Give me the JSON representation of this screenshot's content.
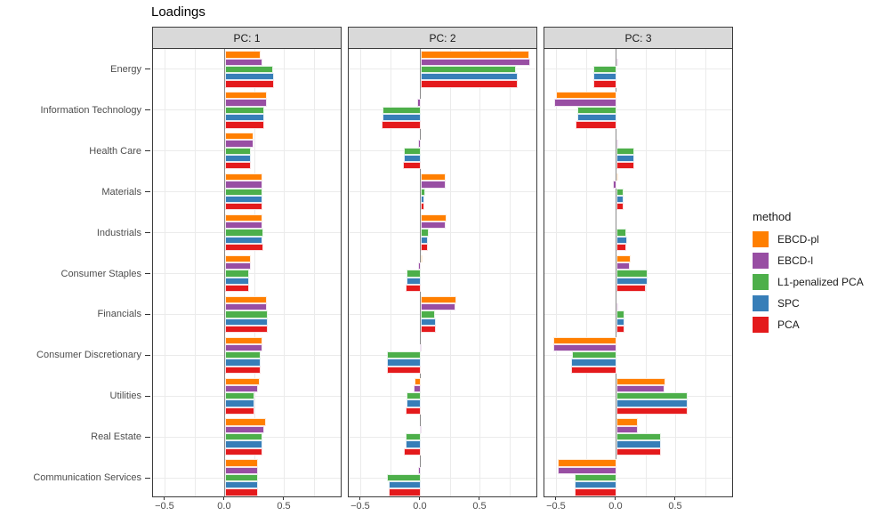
{
  "title": "Loadings",
  "legend": {
    "title": "method",
    "items": [
      {
        "label": "EBCD-pl",
        "color": "#FF7F00"
      },
      {
        "label": "EBCD-l",
        "color": "#984EA3"
      },
      {
        "label": "L1-penalized PCA",
        "color": "#4DAF4A"
      },
      {
        "label": "SPC",
        "color": "#377EB8"
      },
      {
        "label": "PCA",
        "color": "#E41A1C"
      }
    ]
  },
  "theme": {
    "strip_bg": "#D9D9D9",
    "panel_border": "#3C3C3C",
    "gridline": "#EBEBEB",
    "zero_line": "#8A8A8A",
    "axis_text": "#4D4D4D"
  },
  "chart_data": {
    "type": "bar",
    "orientation": "horizontal",
    "title": "Loadings",
    "xlabel": "",
    "ylabel": "",
    "grid": true,
    "legend_position": "right",
    "xlim": [
      -0.604,
      0.985
    ],
    "x_ticks": [
      -0.5,
      0.0,
      0.5
    ],
    "x_tick_labels": [
      "−0.5",
      "0.0",
      "0.5"
    ],
    "x_gridlines": [
      -0.5,
      -0.25,
      0.0,
      0.25,
      0.5,
      0.75
    ],
    "categories": [
      "Energy",
      "Information Technology",
      "Health Care",
      "Materials",
      "Industrials",
      "Consumer Staples",
      "Financials",
      "Consumer Discretionary",
      "Utilities",
      "Real Estate",
      "Communication Services"
    ],
    "methods": [
      "EBCD-pl",
      "EBCD-l",
      "L1-penalized PCA",
      "SPC",
      "PCA"
    ],
    "facets": [
      {
        "label": "PC: 1",
        "series": [
          {
            "name": "EBCD-pl",
            "values": [
              0.3,
              0.35,
              0.24,
              0.31,
              0.31,
              0.22,
              0.35,
              0.31,
              0.29,
              0.34,
              0.28
            ]
          },
          {
            "name": "EBCD-l",
            "values": [
              0.31,
              0.35,
              0.24,
              0.31,
              0.31,
              0.22,
              0.35,
              0.31,
              0.28,
              0.33,
              0.28
            ]
          },
          {
            "name": "L1-penalized PCA",
            "values": [
              0.4,
              0.33,
              0.22,
              0.31,
              0.32,
              0.2,
              0.36,
              0.3,
              0.25,
              0.31,
              0.28
            ]
          },
          {
            "name": "SPC",
            "values": [
              0.41,
              0.33,
              0.22,
              0.31,
              0.31,
              0.2,
              0.36,
              0.3,
              0.25,
              0.31,
              0.28
            ]
          },
          {
            "name": "PCA",
            "values": [
              0.41,
              0.33,
              0.22,
              0.31,
              0.32,
              0.2,
              0.36,
              0.3,
              0.25,
              0.31,
              0.28
            ]
          }
        ]
      },
      {
        "label": "PC: 2",
        "series": [
          {
            "name": "EBCD-pl",
            "values": [
              0.91,
              0.0,
              0.0,
              0.21,
              0.22,
              0.01,
              0.3,
              0.0,
              -0.05,
              0.0,
              0.0
            ]
          },
          {
            "name": "EBCD-l",
            "values": [
              0.92,
              -0.03,
              -0.02,
              0.21,
              0.21,
              -0.02,
              0.29,
              -0.01,
              -0.06,
              -0.01,
              -0.02
            ]
          },
          {
            "name": "L1-penalized PCA",
            "values": [
              0.8,
              -0.32,
              -0.14,
              0.04,
              0.07,
              -0.12,
              0.12,
              -0.28,
              -0.12,
              -0.13,
              -0.28
            ]
          },
          {
            "name": "SPC",
            "values": [
              0.81,
              -0.32,
              -0.14,
              0.03,
              0.06,
              -0.12,
              0.13,
              -0.28,
              -0.12,
              -0.13,
              -0.27
            ]
          },
          {
            "name": "PCA",
            "values": [
              0.81,
              -0.33,
              -0.15,
              0.03,
              0.06,
              -0.13,
              0.13,
              -0.28,
              -0.13,
              -0.14,
              -0.27
            ]
          }
        ]
      },
      {
        "label": "PC: 3",
        "series": [
          {
            "name": "EBCD-pl",
            "values": [
              0.0,
              -0.51,
              0.0,
              0.01,
              0.0,
              0.12,
              0.0,
              -0.53,
              0.41,
              0.18,
              -0.49
            ]
          },
          {
            "name": "EBCD-l",
            "values": [
              0.01,
              -0.52,
              0.01,
              -0.03,
              0.0,
              0.11,
              0.01,
              -0.53,
              0.4,
              0.18,
              -0.49
            ]
          },
          {
            "name": "L1-penalized PCA",
            "values": [
              -0.19,
              -0.33,
              0.15,
              0.06,
              0.08,
              0.26,
              0.07,
              -0.37,
              0.6,
              0.37,
              -0.35
            ]
          },
          {
            "name": "SPC",
            "values": [
              -0.19,
              -0.33,
              0.15,
              0.06,
              0.09,
              0.26,
              0.07,
              -0.38,
              0.6,
              0.37,
              -0.35
            ]
          },
          {
            "name": "PCA",
            "values": [
              -0.19,
              -0.34,
              0.15,
              0.06,
              0.08,
              0.25,
              0.07,
              -0.38,
              0.6,
              0.37,
              -0.35
            ]
          }
        ]
      }
    ]
  }
}
